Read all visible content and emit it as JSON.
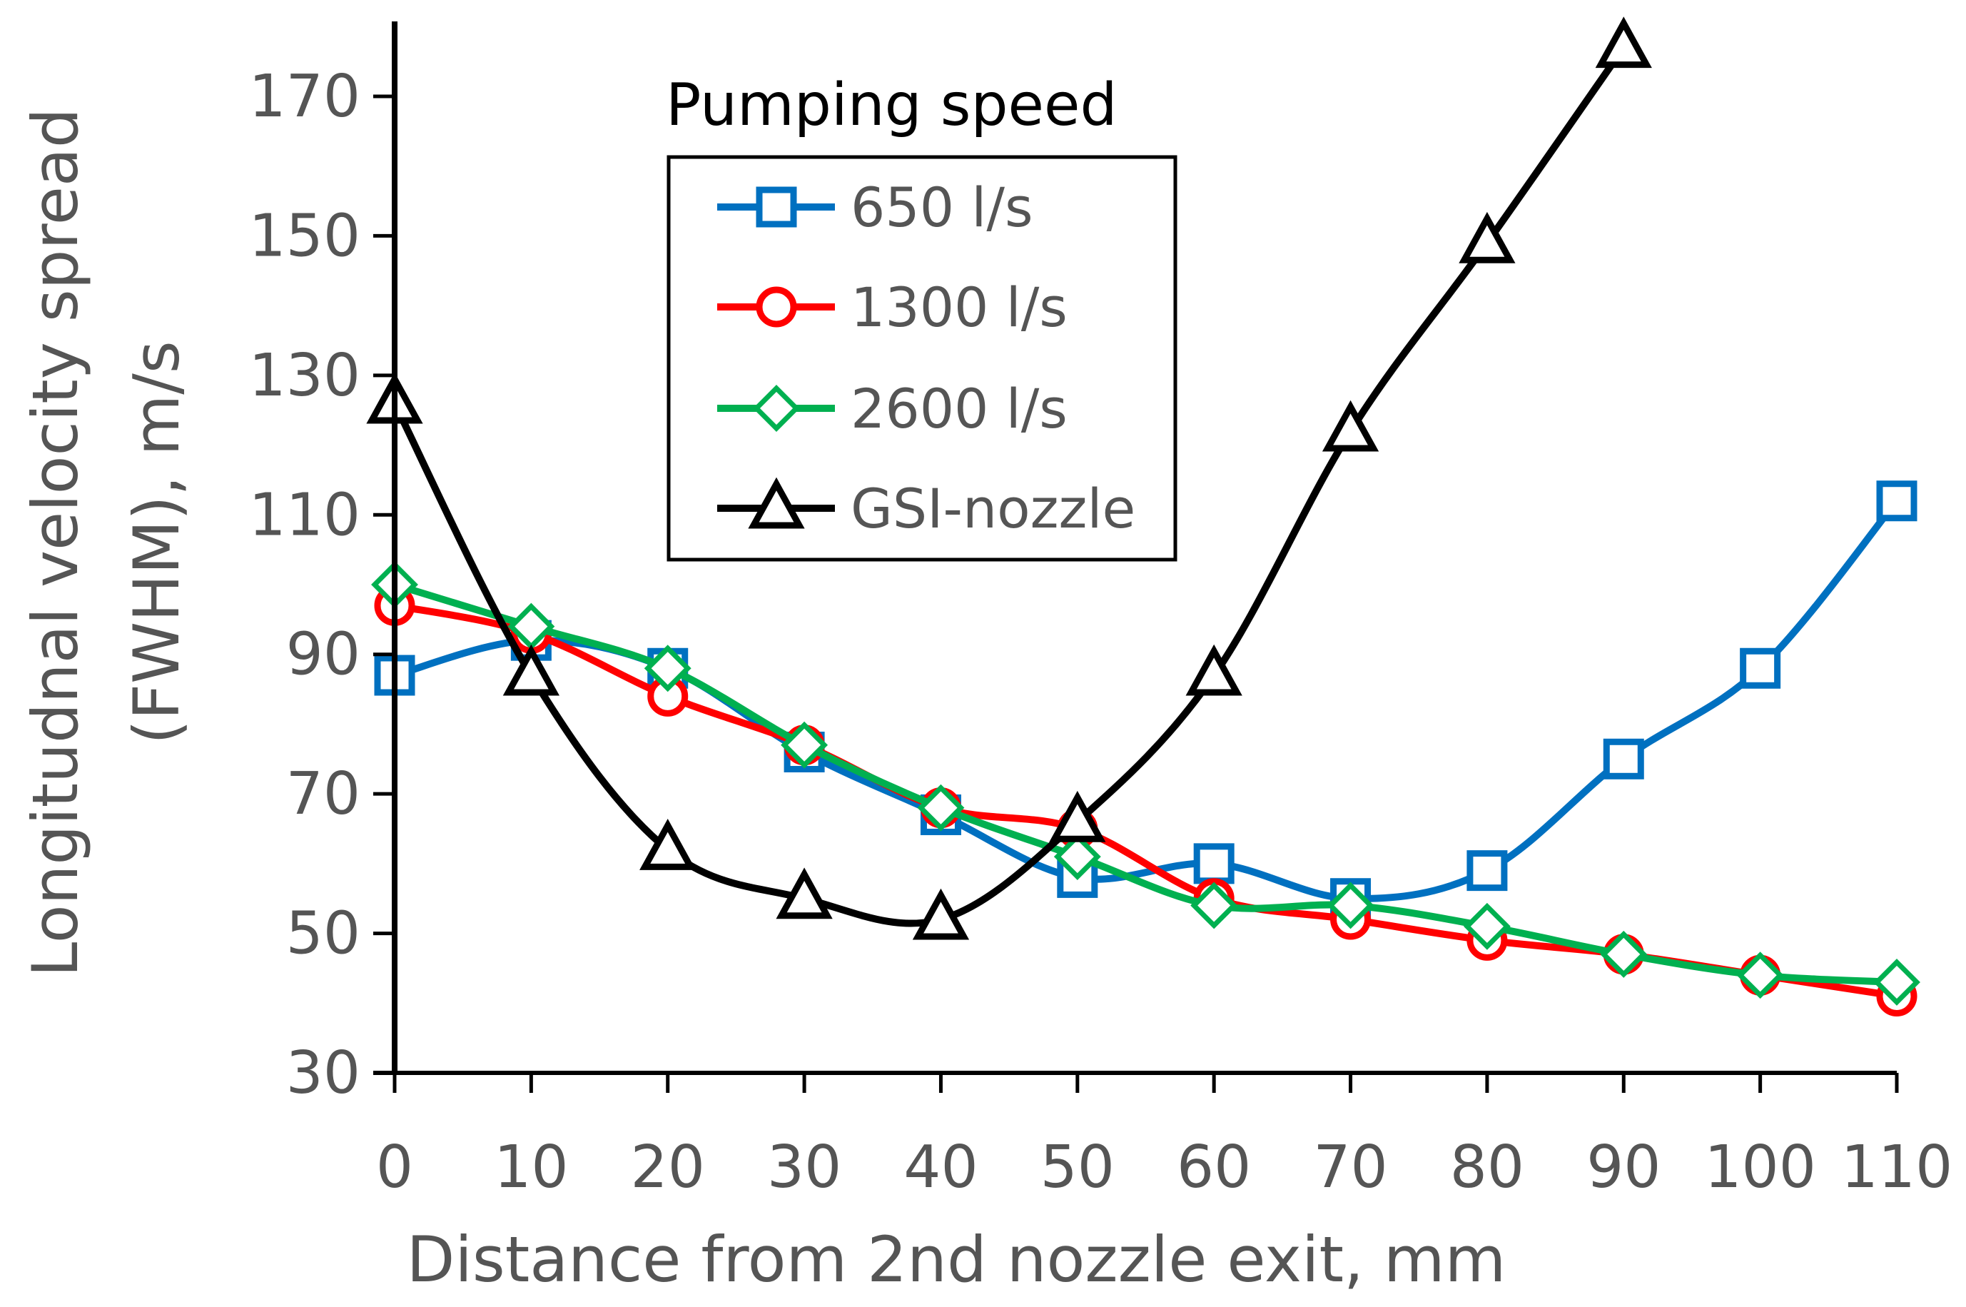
{
  "chart_data": {
    "type": "line",
    "title": "",
    "xlabel": "Distance from 2nd nozzle exit,  mm",
    "ylabel_line1": "Longitudnal velocity spread",
    "ylabel_line2": "(FWHM),  m/s",
    "xlim": [
      0,
      110
    ],
    "ylim": [
      30,
      180
    ],
    "xticks": [
      0,
      10,
      20,
      30,
      40,
      50,
      60,
      70,
      80,
      90,
      100,
      110
    ],
    "yticks": [
      30,
      50,
      70,
      90,
      110,
      130,
      150,
      170
    ],
    "grid": false,
    "legend": {
      "title": "Pumping speed",
      "placement": "top-center"
    },
    "series": [
      {
        "name": "650 l/s",
        "color": "#0070C0",
        "marker": "square",
        "x": [
          0,
          10,
          20,
          30,
          40,
          50,
          60,
          70,
          80,
          90,
          100,
          110
        ],
        "y": [
          87,
          92,
          88,
          76,
          67,
          58,
          60,
          55,
          59,
          75,
          88,
          112
        ]
      },
      {
        "name": "1300 l/s",
        "color": "#FF0000",
        "marker": "circle",
        "x": [
          0,
          10,
          20,
          30,
          40,
          50,
          60,
          70,
          80,
          90,
          100,
          110
        ],
        "y": [
          97,
          93,
          84,
          77,
          68,
          65,
          55,
          52,
          49,
          47,
          44,
          41
        ]
      },
      {
        "name": "2600 l/s",
        "color": "#00B050",
        "marker": "diamond",
        "x": [
          0,
          10,
          20,
          30,
          40,
          50,
          60,
          70,
          80,
          90,
          100,
          110
        ],
        "y": [
          100,
          94,
          88,
          77,
          68,
          61,
          54,
          54,
          51,
          47,
          44,
          43
        ]
      },
      {
        "name": "GSI-nozzle",
        "color": "#000000",
        "marker": "triangle",
        "x": [
          0,
          10,
          20,
          30,
          40,
          50,
          60,
          70,
          80,
          90
        ],
        "y": [
          126,
          87,
          62,
          55,
          52,
          66,
          87,
          122,
          149,
          177
        ]
      }
    ]
  }
}
